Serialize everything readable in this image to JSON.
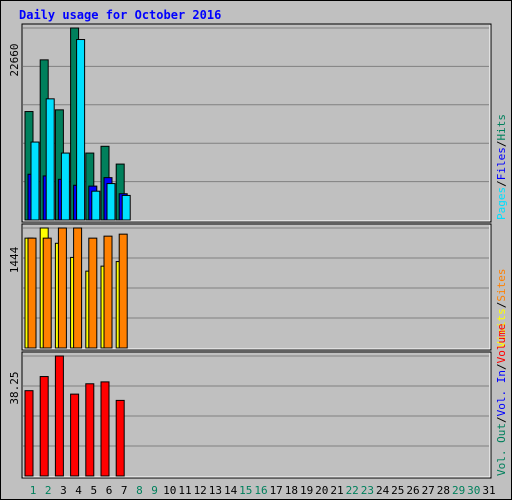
{
  "chart_data": {
    "type": "bar",
    "title": "Daily usage for October 2016",
    "categories": [
      "1",
      "2",
      "3",
      "4",
      "5",
      "6",
      "7",
      "8",
      "9",
      "10",
      "11",
      "12",
      "13",
      "14",
      "15",
      "16",
      "17",
      "18",
      "19",
      "20",
      "21",
      "22",
      "23",
      "24",
      "25",
      "26",
      "27",
      "28",
      "29",
      "30",
      "31"
    ],
    "weekend_days": [
      "1",
      "2",
      "8",
      "9",
      "15",
      "16",
      "22",
      "23",
      "29",
      "30"
    ],
    "panels": [
      {
        "id": "hits-files-pages",
        "ymax_label": "22660",
        "ymax": 22660,
        "legend": [
          "Pages",
          "Files",
          "Hits"
        ],
        "series": [
          {
            "name": "Hits",
            "color": "#00805C",
            "values": [
              12800,
              18900,
              13000,
              22660,
              7900,
              8700,
              6600
            ]
          },
          {
            "name": "Files",
            "color": "#0000FF",
            "values": [
              5400,
              5200,
              4800,
              4100,
              4000,
              5000,
              3100
            ]
          },
          {
            "name": "Pages",
            "color": "#00E0FF",
            "values": [
              9200,
              14300,
              7900,
              21300,
              3400,
              4300,
              2900
            ]
          }
        ]
      },
      {
        "id": "visits-sites",
        "ymax_label": "1444",
        "ymax": 1444,
        "legend": [
          "Visits",
          "Sites"
        ],
        "series": [
          {
            "name": "Visits",
            "color": "#FFFF00",
            "values": [
              1322,
              1444,
              1260,
              1090,
              925,
              985,
              1040
            ]
          },
          {
            "name": "Sites",
            "color": "#FF8000",
            "values": [
              1322,
              1322,
              1444,
              1444,
              1322,
              1346,
              1370
            ]
          }
        ]
      },
      {
        "id": "volume",
        "ymax_label": "38.25",
        "ymax": 38.25,
        "legend": [
          "Vol. Out",
          "Vol. In",
          "Volume"
        ],
        "series": [
          {
            "name": "Volume",
            "color": "#FF0000",
            "values": [
              27.2,
              31.7,
              38.25,
              26.1,
              29.4,
              30.0,
              24.1
            ]
          }
        ]
      }
    ],
    "colors": {
      "background": "#C0C0C0",
      "title": "#0000FF",
      "weekday_label": "#000000",
      "weekend_label": "#00805C",
      "gridline": "#808080",
      "vol_out": "#00805C",
      "vol_in": "#0000FF"
    }
  }
}
